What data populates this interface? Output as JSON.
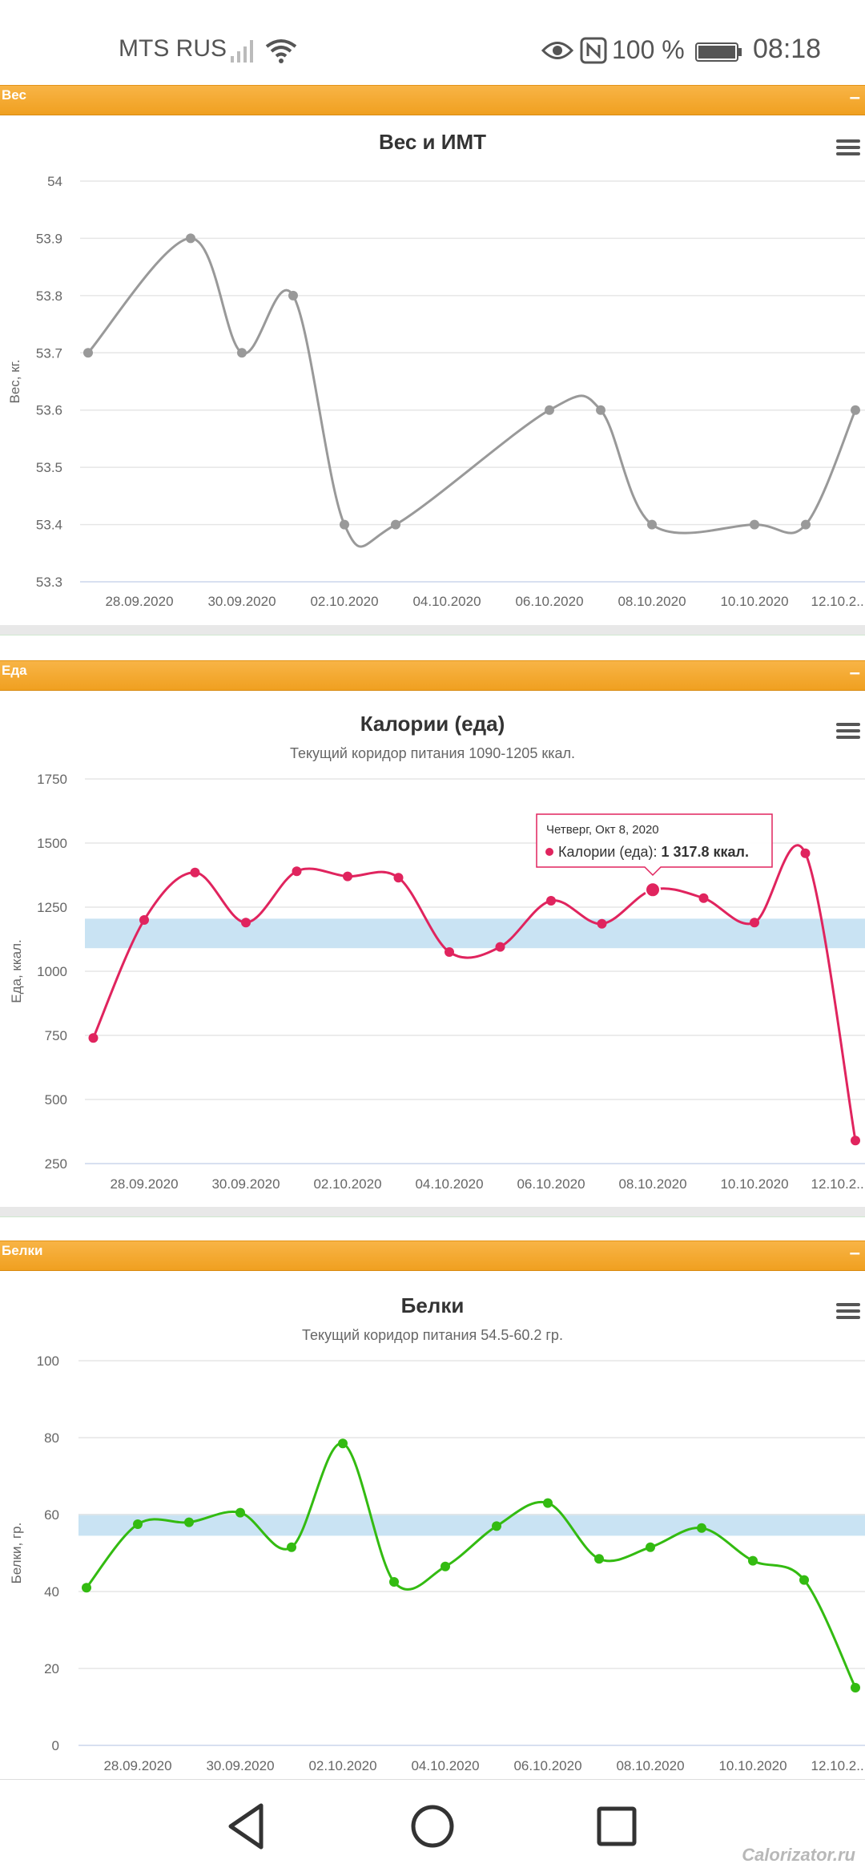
{
  "status_bar": {
    "carrier": "MTS RUS",
    "battery_percent": "100 %",
    "time": "08:18",
    "icons": [
      "signal-icon",
      "wifi-icon",
      "eye-icon",
      "nfc-icon",
      "battery-icon"
    ]
  },
  "sections": [
    {
      "title": "Вес",
      "collapse": "–"
    },
    {
      "title": "Еда",
      "collapse": "–"
    },
    {
      "title": "Белки",
      "collapse": "–"
    }
  ],
  "colors": {
    "weight_series": "#999999",
    "calories_series": "#e0245e",
    "protein_series": "#33bb11",
    "corridor_band": "#c9e3f3",
    "section_bar": "#f2a42a"
  },
  "chart_data": [
    {
      "type": "line",
      "title": "Вес и ИМТ",
      "subtitle": "",
      "ylabel": "Вес, кг.",
      "ylim": [
        53.3,
        54
      ],
      "yticks": [
        "54",
        "53.9",
        "53.8",
        "53.7",
        "53.6",
        "53.5",
        "53.4",
        "53.3"
      ],
      "xticks": [
        "28.09.2020",
        "30.09.2020",
        "02.10.2020",
        "04.10.2020",
        "06.10.2020",
        "08.10.2020",
        "10.10.2020",
        "12.10.2..."
      ],
      "x": [
        "27.09.2020",
        "29.09.2020",
        "30.09.2020",
        "01.10.2020",
        "02.10.2020",
        "03.10.2020",
        "06.10.2020",
        "07.10.2020",
        "08.10.2020",
        "10.10.2020",
        "11.10.2020",
        "12.10.2020"
      ],
      "series": [
        {
          "values": [
            53.7,
            53.9,
            53.7,
            53.8,
            53.4,
            53.4,
            53.6,
            53.6,
            53.4,
            53.4,
            53.4,
            53.6
          ]
        }
      ],
      "grid": true
    },
    {
      "type": "line",
      "title": "Калории (еда)",
      "subtitle": "Текущий коридор питания 1090-1205 ккал.",
      "ylabel": "Еда, ккал.",
      "ylim": [
        250,
        1750
      ],
      "yticks": [
        "1750",
        "1500",
        "1250",
        "1000",
        "750",
        "500",
        "250"
      ],
      "band": [
        1090,
        1205
      ],
      "xticks": [
        "28.09.2020",
        "30.09.2020",
        "02.10.2020",
        "04.10.2020",
        "06.10.2020",
        "08.10.2020",
        "10.10.2020",
        "12.10.2..."
      ],
      "x": [
        "27.09.2020",
        "28.09.2020",
        "29.09.2020",
        "30.09.2020",
        "01.10.2020",
        "02.10.2020",
        "03.10.2020",
        "04.10.2020",
        "05.10.2020",
        "06.10.2020",
        "07.10.2020",
        "08.10.2020",
        "09.10.2020",
        "10.10.2020",
        "11.10.2020",
        "12.10.2020"
      ],
      "series": [
        {
          "name": "Калории (еда)",
          "values": [
            740,
            1200,
            1385,
            1190,
            1390,
            1370,
            1365,
            1075,
            1095,
            1275,
            1185,
            1317.8,
            1285,
            1190,
            1460,
            340
          ]
        }
      ],
      "tooltip": {
        "date": "Четверг, Окт 8, 2020",
        "label": "Калории (еда): ",
        "value": "1 317.8 ккал."
      },
      "grid": true
    },
    {
      "type": "line",
      "title": "Белки",
      "subtitle": "Текущий коридор питания 54.5-60.2 гр.",
      "ylabel": "Белки, гр.",
      "ylim": [
        0,
        100
      ],
      "yticks": [
        "100",
        "80",
        "60",
        "40",
        "20",
        "0"
      ],
      "band": [
        54.5,
        60.2
      ],
      "xticks": [
        "28.09.2020",
        "30.09.2020",
        "02.10.2020",
        "04.10.2020",
        "06.10.2020",
        "08.10.2020",
        "10.10.2020",
        "12.10.2..."
      ],
      "x": [
        "27.09.2020",
        "28.09.2020",
        "29.09.2020",
        "30.09.2020",
        "01.10.2020",
        "02.10.2020",
        "03.10.2020",
        "04.10.2020",
        "05.10.2020",
        "06.10.2020",
        "07.10.2020",
        "08.10.2020",
        "09.10.2020",
        "10.10.2020",
        "11.10.2020",
        "12.10.2020"
      ],
      "series": [
        {
          "values": [
            41,
            57.5,
            58,
            60.5,
            51.5,
            78.5,
            42.5,
            46.5,
            57,
            63,
            48.5,
            51.5,
            56.5,
            48,
            43,
            15
          ]
        }
      ],
      "grid": true
    }
  ],
  "watermark": "Calorizator.ru"
}
